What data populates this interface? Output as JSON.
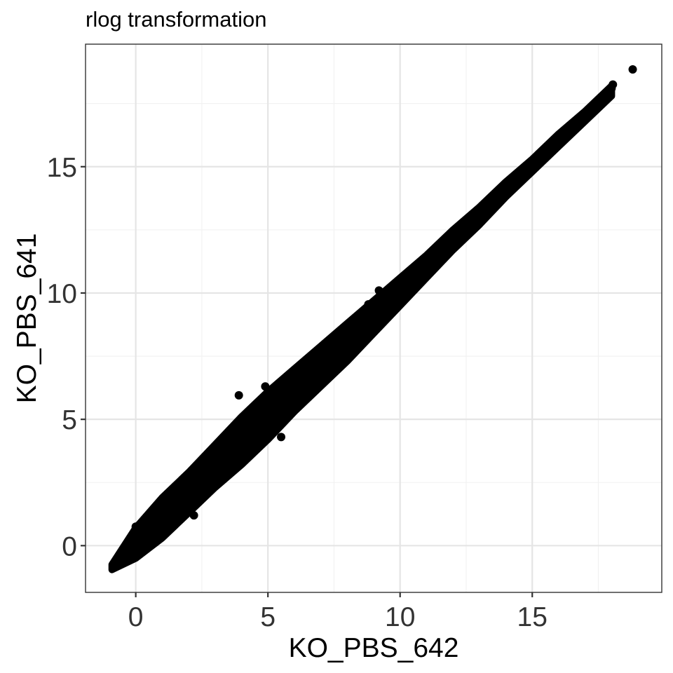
{
  "chart_data": {
    "type": "scatter",
    "title": "rlog transformation",
    "xlabel": "KO_PBS_642",
    "ylabel": "KO_PBS_641",
    "xlim": [
      -1.9,
      19.9
    ],
    "ylim": [
      -1.85,
      19.85
    ],
    "x_ticks": [
      0,
      5,
      10,
      15
    ],
    "y_ticks": [
      0,
      5,
      10,
      15
    ],
    "x_tick_labels": [
      "0",
      "5",
      "10",
      "15"
    ],
    "y_tick_labels": [
      "0",
      "5",
      "10",
      "15"
    ],
    "grid": true,
    "legend": "none",
    "point_color": "#000000",
    "band": {
      "description": "dense diagonal cloud of genes, y ≈ x",
      "x_range": [
        -0.9,
        18.0
      ],
      "samples": [
        {
          "x": -0.9,
          "y_low": -0.95,
          "y_high": -0.75
        },
        {
          "x": 0.0,
          "y_low": -0.5,
          "y_high": 0.7
        },
        {
          "x": 1.0,
          "y_low": 0.3,
          "y_high": 1.9
        },
        {
          "x": 2.0,
          "y_low": 1.3,
          "y_high": 2.9
        },
        {
          "x": 3.0,
          "y_low": 2.3,
          "y_high": 4.0
        },
        {
          "x": 4.0,
          "y_low": 3.2,
          "y_high": 5.1
        },
        {
          "x": 5.0,
          "y_low": 4.2,
          "y_high": 6.1
        },
        {
          "x": 6.0,
          "y_low": 5.3,
          "y_high": 7.0
        },
        {
          "x": 7.0,
          "y_low": 6.3,
          "y_high": 7.9
        },
        {
          "x": 8.0,
          "y_low": 7.3,
          "y_high": 8.8
        },
        {
          "x": 9.0,
          "y_low": 8.4,
          "y_high": 9.7
        },
        {
          "x": 10.0,
          "y_low": 9.5,
          "y_high": 10.6
        },
        {
          "x": 11.0,
          "y_low": 10.6,
          "y_high": 11.5
        },
        {
          "x": 12.0,
          "y_low": 11.7,
          "y_high": 12.5
        },
        {
          "x": 13.0,
          "y_low": 12.7,
          "y_high": 13.4
        },
        {
          "x": 14.0,
          "y_low": 13.8,
          "y_high": 14.4
        },
        {
          "x": 15.0,
          "y_low": 14.8,
          "y_high": 15.3
        },
        {
          "x": 16.0,
          "y_low": 15.8,
          "y_high": 16.3
        },
        {
          "x": 17.0,
          "y_low": 16.8,
          "y_high": 17.2
        },
        {
          "x": 18.0,
          "y_low": 17.8,
          "y_high": 18.2
        }
      ]
    },
    "points": [
      {
        "x": 18.8,
        "y": 18.85
      },
      {
        "x": 17.7,
        "y": 17.6
      },
      {
        "x": 17.4,
        "y": 17.4
      },
      {
        "x": 18.0,
        "y": 18.1
      },
      {
        "x": 18.05,
        "y": 18.25
      },
      {
        "x": 9.2,
        "y": 10.1
      },
      {
        "x": 8.8,
        "y": 9.55
      },
      {
        "x": 3.9,
        "y": 5.95
      },
      {
        "x": 2.0,
        "y": 2.6
      },
      {
        "x": 3.6,
        "y": 4.05
      },
      {
        "x": 5.5,
        "y": 4.3
      },
      {
        "x": 7.4,
        "y": 7.6
      },
      {
        "x": 2.2,
        "y": 1.2
      },
      {
        "x": 4.9,
        "y": 6.3
      },
      {
        "x": 0.0,
        "y": 0.75
      }
    ]
  }
}
